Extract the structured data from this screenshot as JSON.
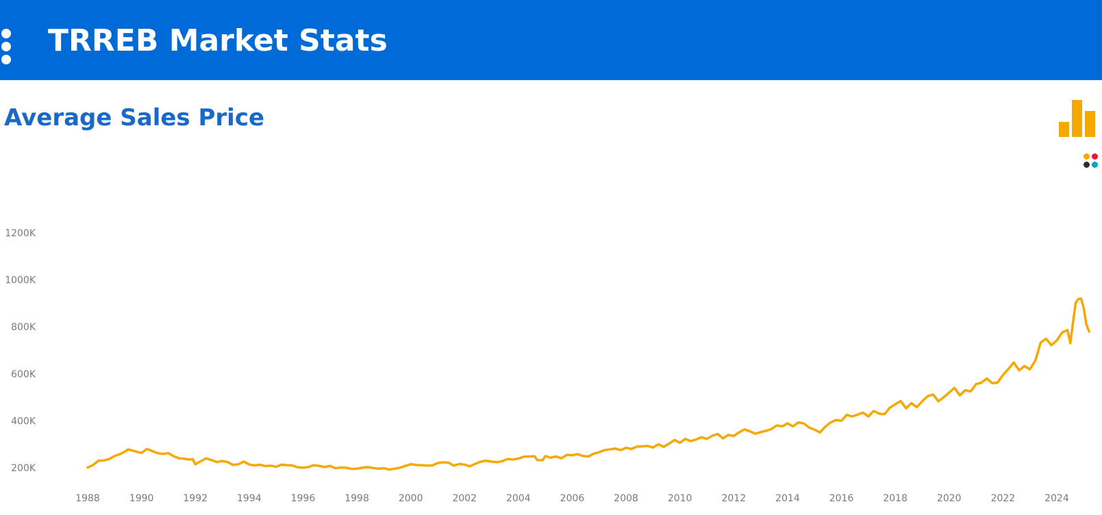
{
  "header": {
    "title": "TRREB Market Stats"
  },
  "page": {
    "title": "Average Sales Price"
  },
  "icons": {
    "menu": "vertical-dots-icon",
    "chart_type": "bar-chart-icon",
    "palette": "color-palette-icon",
    "palette_colors": [
      "#f5a800",
      "#e8173a",
      "#2b2b2b",
      "#00a8c6"
    ]
  },
  "colors": {
    "header_bg": "#006bd6",
    "title_blue": "#1869c9",
    "line": "#f5a800"
  },
  "chart_data": {
    "type": "line",
    "title": "",
    "xlabel": "",
    "ylabel": "",
    "xlim": [
      1987.3,
      2025.3
    ],
    "ylim": [
      170000,
      1360000
    ],
    "x_ticks": [
      1988,
      1990,
      1992,
      1994,
      1996,
      1998,
      2000,
      2002,
      2004,
      2006,
      2008,
      2010,
      2012,
      2014,
      2016,
      2018,
      2020,
      2022,
      2024
    ],
    "y_ticks": [
      200000,
      400000,
      600000,
      800000,
      1000000,
      1200000
    ],
    "y_tick_labels": [
      "200K",
      "400K",
      "600K",
      "800K",
      "1000K",
      "1200K"
    ],
    "grid": false,
    "legend": "none",
    "series": [
      {
        "color": "#f5a800",
        "points": [
          [
            1988.0,
            201000
          ],
          [
            1988.2,
            212000
          ],
          [
            1988.4,
            230000
          ],
          [
            1988.6,
            231000
          ],
          [
            1988.8,
            237000
          ],
          [
            1989.0,
            250000
          ],
          [
            1989.2,
            258000
          ],
          [
            1989.4,
            270000
          ],
          [
            1989.5,
            278000
          ],
          [
            1989.7,
            272000
          ],
          [
            1989.9,
            266000
          ],
          [
            1990.0,
            263000
          ],
          [
            1990.2,
            280000
          ],
          [
            1990.4,
            271000
          ],
          [
            1990.6,
            262000
          ],
          [
            1990.8,
            259000
          ],
          [
            1991.0,
            262000
          ],
          [
            1991.2,
            249000
          ],
          [
            1991.4,
            240000
          ],
          [
            1991.6,
            238000
          ],
          [
            1991.8,
            235000
          ],
          [
            1991.9,
            237000
          ],
          [
            1992.0,
            215000
          ],
          [
            1992.2,
            228000
          ],
          [
            1992.4,
            240000
          ],
          [
            1992.6,
            233000
          ],
          [
            1992.8,
            224000
          ],
          [
            1993.0,
            229000
          ],
          [
            1993.2,
            224000
          ],
          [
            1993.4,
            212000
          ],
          [
            1993.6,
            215000
          ],
          [
            1993.8,
            226000
          ],
          [
            1994.0,
            214000
          ],
          [
            1994.2,
            210000
          ],
          [
            1994.4,
            213000
          ],
          [
            1994.6,
            207000
          ],
          [
            1994.8,
            209000
          ],
          [
            1995.0,
            204000
          ],
          [
            1995.2,
            213000
          ],
          [
            1995.4,
            211000
          ],
          [
            1995.6,
            210000
          ],
          [
            1995.8,
            202000
          ],
          [
            1996.0,
            200000
          ],
          [
            1996.2,
            203000
          ],
          [
            1996.4,
            211000
          ],
          [
            1996.6,
            208000
          ],
          [
            1996.8,
            203000
          ],
          [
            1997.0,
            208000
          ],
          [
            1997.2,
            198000
          ],
          [
            1997.4,
            201000
          ],
          [
            1997.6,
            200000
          ],
          [
            1997.8,
            195000
          ],
          [
            1998.0,
            196000
          ],
          [
            1998.2,
            200000
          ],
          [
            1998.4,
            203000
          ],
          [
            1998.6,
            199000
          ],
          [
            1998.8,
            196000
          ],
          [
            1999.0,
            198000
          ],
          [
            1999.2,
            192000
          ],
          [
            1999.4,
            196000
          ],
          [
            1999.6,
            200000
          ],
          [
            1999.8,
            208000
          ],
          [
            2000.0,
            215000
          ],
          [
            2000.2,
            212000
          ],
          [
            2000.4,
            211000
          ],
          [
            2000.6,
            209000
          ],
          [
            2000.8,
            210000
          ],
          [
            2001.0,
            220000
          ],
          [
            2001.2,
            223000
          ],
          [
            2001.4,
            222000
          ],
          [
            2001.6,
            209000
          ],
          [
            2001.8,
            216000
          ],
          [
            2002.0,
            213000
          ],
          [
            2002.2,
            206000
          ],
          [
            2002.4,
            217000
          ],
          [
            2002.6,
            226000
          ],
          [
            2002.8,
            230000
          ],
          [
            2003.0,
            226000
          ],
          [
            2003.2,
            224000
          ],
          [
            2003.4,
            228000
          ],
          [
            2003.6,
            237000
          ],
          [
            2003.8,
            235000
          ],
          [
            2004.0,
            239000
          ],
          [
            2004.2,
            247000
          ],
          [
            2004.4,
            248000
          ],
          [
            2004.6,
            249000
          ],
          [
            2004.7,
            233000
          ],
          [
            2004.9,
            232000
          ],
          [
            2005.0,
            250000
          ],
          [
            2005.2,
            243000
          ],
          [
            2005.4,
            248000
          ],
          [
            2005.6,
            240000
          ],
          [
            2005.8,
            255000
          ],
          [
            2006.0,
            253000
          ],
          [
            2006.2,
            258000
          ],
          [
            2006.4,
            250000
          ],
          [
            2006.6,
            248000
          ],
          [
            2006.8,
            260000
          ],
          [
            2007.0,
            266000
          ],
          [
            2007.2,
            275000
          ],
          [
            2007.4,
            278000
          ],
          [
            2007.6,
            282000
          ],
          [
            2007.8,
            275000
          ],
          [
            2008.0,
            285000
          ],
          [
            2008.2,
            280000
          ],
          [
            2008.4,
            290000
          ],
          [
            2008.6,
            291000
          ],
          [
            2008.8,
            293000
          ],
          [
            2009.0,
            286000
          ],
          [
            2009.2,
            300000
          ],
          [
            2009.4,
            289000
          ],
          [
            2009.6,
            303000
          ],
          [
            2009.8,
            318000
          ],
          [
            2010.0,
            306000
          ],
          [
            2010.2,
            323000
          ],
          [
            2010.4,
            313000
          ],
          [
            2010.6,
            320000
          ],
          [
            2010.8,
            330000
          ],
          [
            2011.0,
            323000
          ],
          [
            2011.2,
            336000
          ],
          [
            2011.4,
            344000
          ],
          [
            2011.6,
            325000
          ],
          [
            2011.8,
            340000
          ],
          [
            2012.0,
            335000
          ],
          [
            2012.2,
            351000
          ],
          [
            2012.4,
            363000
          ],
          [
            2012.6,
            355000
          ],
          [
            2012.8,
            345000
          ],
          [
            2013.0,
            352000
          ],
          [
            2013.2,
            357000
          ],
          [
            2013.4,
            365000
          ],
          [
            2013.6,
            380000
          ],
          [
            2013.8,
            376000
          ],
          [
            2014.0,
            389000
          ],
          [
            2014.2,
            376000
          ],
          [
            2014.4,
            393000
          ],
          [
            2014.6,
            389000
          ],
          [
            2014.8,
            371000
          ],
          [
            2015.0,
            362000
          ],
          [
            2015.2,
            350000
          ],
          [
            2015.4,
            375000
          ],
          [
            2015.6,
            393000
          ],
          [
            2015.8,
            403000
          ],
          [
            2016.0,
            400000
          ],
          [
            2016.2,
            425000
          ],
          [
            2016.4,
            418000
          ],
          [
            2016.6,
            426000
          ],
          [
            2016.8,
            435000
          ],
          [
            2017.0,
            418000
          ],
          [
            2017.2,
            442000
          ],
          [
            2017.4,
            430000
          ],
          [
            2017.6,
            428000
          ],
          [
            2017.8,
            456000
          ],
          [
            2018.0,
            470000
          ],
          [
            2018.2,
            484000
          ],
          [
            2018.4,
            453000
          ],
          [
            2018.6,
            475000
          ],
          [
            2018.8,
            458000
          ],
          [
            2019.0,
            483000
          ],
          [
            2019.2,
            504000
          ],
          [
            2019.4,
            512000
          ],
          [
            2019.6,
            483000
          ],
          [
            2019.8,
            500000
          ],
          [
            2020.0,
            520000
          ],
          [
            2020.2,
            540000
          ],
          [
            2020.4,
            508000
          ],
          [
            2020.6,
            530000
          ],
          [
            2020.8,
            525000
          ],
          [
            2021.0,
            556000
          ],
          [
            2021.2,
            562000
          ],
          [
            2021.4,
            580000
          ],
          [
            2021.6,
            560000
          ],
          [
            2021.8,
            562000
          ],
          [
            2022.0,
            595000
          ],
          [
            2022.2,
            620000
          ],
          [
            2022.4,
            648000
          ],
          [
            2022.6,
            615000
          ],
          [
            2022.8,
            633000
          ],
          [
            2023.0,
            619000
          ],
          [
            2023.2,
            656000
          ],
          [
            2023.4,
            733000
          ],
          [
            2023.6,
            749000
          ],
          [
            2023.8,
            722000
          ],
          [
            2024.0,
            742000
          ],
          [
            2024.2,
            776000
          ],
          [
            2024.4,
            786000
          ],
          [
            2024.5,
            730000
          ],
          [
            2024.7,
            902000
          ],
          [
            2024.8,
            918000
          ],
          [
            2024.9,
            920000
          ],
          [
            2025.0,
            880000
          ],
          [
            2025.1,
            810000
          ],
          [
            2025.2,
            780000
          ]
        ]
      }
    ]
  }
}
